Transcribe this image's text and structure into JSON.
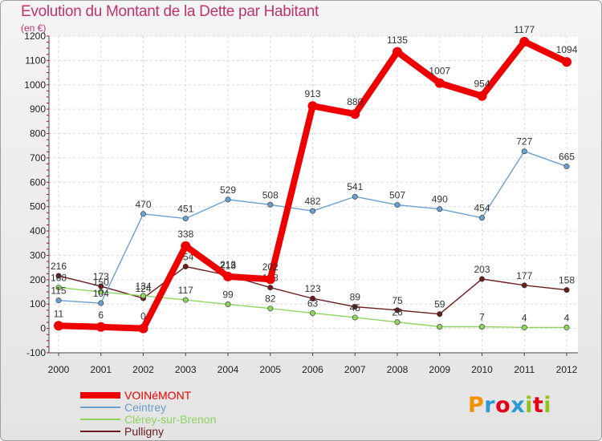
{
  "title": "Evolution du Montant de la Dette par Habitant",
  "unit": "(en €)",
  "logo": {
    "text": "Proxiti",
    "colors": [
      "#f39200",
      "#2b9ad6",
      "#e2001a",
      "#2b9ad6",
      "#95c11f",
      "#e2001a",
      "#95c11f"
    ]
  },
  "chart_data": {
    "type": "line",
    "title": "Evolution du Montant de la Dette par Habitant",
    "ylabel": "(en €)",
    "xlabel": "",
    "x": [
      "2000",
      "2001",
      "2002",
      "2003",
      "2004",
      "2005",
      "2006",
      "2007",
      "2008",
      "2009",
      "2010",
      "2011",
      "2012"
    ],
    "ylim": [
      -100,
      1200
    ],
    "yticks": [
      "-100",
      "0",
      "100",
      "200",
      "300",
      "400",
      "500",
      "600",
      "700",
      "800",
      "900",
      "1000",
      "1100",
      "1200"
    ],
    "grid": true,
    "legend_position": "bottom-left",
    "series": [
      {
        "name": "Pulligny",
        "color": "#6b1c1c",
        "emphasis": false,
        "values": [
          216,
          173,
          124,
          254,
          218,
          168,
          123,
          89,
          75,
          59,
          203,
          177,
          158
        ],
        "labels": [
          "216",
          "173",
          "124",
          "254",
          "218",
          "168",
          "123",
          "89",
          "75",
          "59",
          "203",
          "177",
          "158"
        ]
      },
      {
        "name": "Clérey-sur-Brenon",
        "color": "#8fd45e",
        "emphasis": false,
        "values": [
          168,
          150,
          134,
          117,
          99,
          82,
          63,
          45,
          26,
          7,
          7,
          4,
          4
        ],
        "labels": [
          "168",
          "150",
          "134",
          "117",
          "99",
          "82",
          "63",
          "45",
          "26",
          "",
          "7",
          "4",
          "4"
        ]
      },
      {
        "name": "Ceintrey",
        "color": "#6aa0cf",
        "emphasis": false,
        "values": [
          115,
          104,
          470,
          451,
          529,
          508,
          482,
          541,
          507,
          490,
          454,
          727,
          665
        ],
        "labels": [
          "115",
          "104",
          "470",
          "451",
          "529",
          "508",
          "482",
          "541",
          "507",
          "490",
          "454",
          "727",
          "665"
        ]
      },
      {
        "name": "VOINéMONT",
        "color": "#ee0000",
        "emphasis": true,
        "values": [
          11,
          6,
          0,
          338,
          213,
          202,
          913,
          880,
          1135,
          1007,
          954,
          1177,
          1094
        ],
        "labels": [
          "11",
          "6",
          "0",
          "338",
          "213",
          "202",
          "913",
          "880",
          "1135",
          "1007",
          "954",
          "1177",
          "1094"
        ]
      }
    ],
    "legend": [
      "VOINéMONT",
      "Ceintrey",
      "Clérey-sur-Brenon",
      "Pulligny"
    ]
  }
}
